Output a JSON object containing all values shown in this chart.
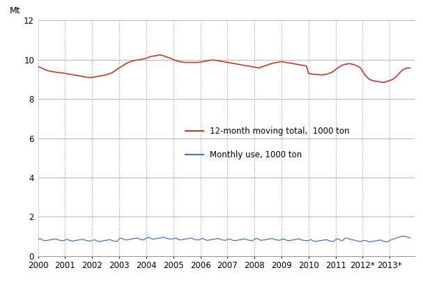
{
  "ylabel": "Mt",
  "xlim_min": 0,
  "xlim_max": 167,
  "ylim_min": 0,
  "ylim_max": 12,
  "yticks": [
    0,
    2,
    4,
    6,
    8,
    10,
    12
  ],
  "x_tick_labels": [
    "2000",
    "2001",
    "2002",
    "2003",
    "2004",
    "2005",
    "2006",
    "2007",
    "2008",
    "2009",
    "2010",
    "2011",
    "2012*",
    "2013*"
  ],
  "x_tick_positions": [
    0,
    12,
    24,
    36,
    48,
    60,
    72,
    84,
    96,
    108,
    120,
    132,
    144,
    156
  ],
  "background_color": "#ffffff",
  "grid_h_color": "#999999",
  "grid_v_color": "#aaaaaa",
  "red_line_color": "#c0392b",
  "blue_line_color": "#4472c4",
  "legend_red_label": "12-month moving total,  1000 ton",
  "legend_blue_label": "Monthly use, 1000 ton",
  "monthly_data": [
    0.85,
    0.88,
    0.82,
    0.78,
    0.8,
    0.82,
    0.84,
    0.86,
    0.88,
    0.82,
    0.8,
    0.78,
    0.82,
    0.85,
    0.8,
    0.76,
    0.78,
    0.8,
    0.82,
    0.84,
    0.86,
    0.8,
    0.78,
    0.76,
    0.8,
    0.83,
    0.78,
    0.74,
    0.76,
    0.78,
    0.8,
    0.82,
    0.84,
    0.78,
    0.76,
    0.74,
    0.88,
    0.92,
    0.86,
    0.82,
    0.84,
    0.86,
    0.88,
    0.9,
    0.92,
    0.86,
    0.84,
    0.82,
    0.92,
    0.96,
    0.9,
    0.86,
    0.88,
    0.9,
    0.92,
    0.94,
    0.96,
    0.9,
    0.88,
    0.86,
    0.88,
    0.92,
    0.86,
    0.82,
    0.84,
    0.86,
    0.88,
    0.9,
    0.92,
    0.86,
    0.84,
    0.82,
    0.86,
    0.9,
    0.84,
    0.8,
    0.82,
    0.84,
    0.86,
    0.88,
    0.9,
    0.84,
    0.82,
    0.8,
    0.84,
    0.88,
    0.82,
    0.78,
    0.8,
    0.82,
    0.84,
    0.86,
    0.88,
    0.82,
    0.8,
    0.78,
    0.86,
    0.9,
    0.84,
    0.8,
    0.82,
    0.84,
    0.86,
    0.88,
    0.9,
    0.84,
    0.82,
    0.8,
    0.84,
    0.88,
    0.82,
    0.78,
    0.8,
    0.82,
    0.84,
    0.86,
    0.88,
    0.82,
    0.8,
    0.78,
    0.8,
    0.84,
    0.78,
    0.74,
    0.76,
    0.78,
    0.8,
    0.82,
    0.84,
    0.78,
    0.76,
    0.74,
    0.84,
    0.88,
    0.82,
    0.78,
    0.9,
    0.92,
    0.86,
    0.84,
    0.82,
    0.78,
    0.76,
    0.74,
    0.78,
    0.8,
    0.76,
    0.72,
    0.74,
    0.76,
    0.78,
    0.8,
    0.82,
    0.76,
    0.74,
    0.72,
    0.8,
    0.84,
    0.88,
    0.92,
    0.96,
    1.0,
    1.02,
    1.0,
    0.96,
    0.92
  ],
  "moving_total_data": [
    9.65,
    9.6,
    9.55,
    9.5,
    9.45,
    9.42,
    9.4,
    9.38,
    9.36,
    9.35,
    9.33,
    9.32,
    9.3,
    9.28,
    9.26,
    9.24,
    9.22,
    9.2,
    9.18,
    9.16,
    9.14,
    9.12,
    9.1,
    9.08,
    9.1,
    9.12,
    9.14,
    9.16,
    9.18,
    9.2,
    9.22,
    9.26,
    9.3,
    9.35,
    9.42,
    9.5,
    9.58,
    9.65,
    9.72,
    9.8,
    9.86,
    9.9,
    9.94,
    9.96,
    9.98,
    10.0,
    10.02,
    10.04,
    10.08,
    10.12,
    10.16,
    10.18,
    10.2,
    10.22,
    10.24,
    10.22,
    10.18,
    10.14,
    10.1,
    10.06,
    10.0,
    9.96,
    9.92,
    9.9,
    9.88,
    9.86,
    9.86,
    9.86,
    9.86,
    9.86,
    9.86,
    9.86,
    9.88,
    9.9,
    9.92,
    9.94,
    9.96,
    9.98,
    9.98,
    9.96,
    9.94,
    9.92,
    9.9,
    9.88,
    9.86,
    9.84,
    9.82,
    9.8,
    9.78,
    9.76,
    9.74,
    9.72,
    9.7,
    9.68,
    9.66,
    9.64,
    9.62,
    9.6,
    9.58,
    9.62,
    9.66,
    9.7,
    9.74,
    9.78,
    9.82,
    9.84,
    9.86,
    9.88,
    9.9,
    9.88,
    9.86,
    9.84,
    9.82,
    9.8,
    9.78,
    9.76,
    9.74,
    9.72,
    9.7,
    9.68,
    9.3,
    9.28,
    9.26,
    9.25,
    9.24,
    9.23,
    9.22,
    9.24,
    9.26,
    9.3,
    9.34,
    9.4,
    9.5,
    9.58,
    9.66,
    9.72,
    9.76,
    9.78,
    9.8,
    9.78,
    9.75,
    9.7,
    9.65,
    9.58,
    9.4,
    9.22,
    9.1,
    9.0,
    8.95,
    8.92,
    8.9,
    8.88,
    8.86,
    8.84,
    8.86,
    8.9,
    8.94,
    8.98,
    9.05,
    9.15,
    9.28,
    9.4,
    9.5,
    9.55,
    9.58,
    9.58
  ]
}
